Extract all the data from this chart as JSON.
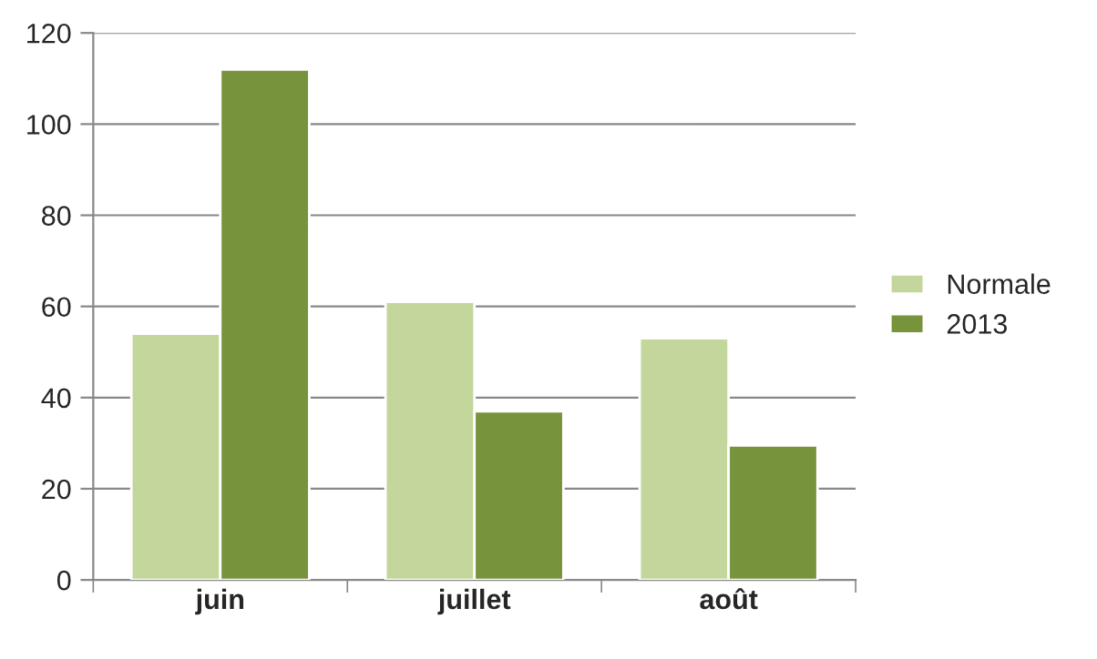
{
  "chart_data": {
    "type": "bar",
    "categories": [
      "juin",
      "juillet",
      "août"
    ],
    "series": [
      {
        "name": "Normale",
        "color": "#c3d69b",
        "values": [
          54,
          61,
          53
        ]
      },
      {
        "name": "2013",
        "color": "#77933c",
        "values": [
          112,
          37,
          29.5
        ]
      }
    ],
    "ylim": [
      0,
      120
    ],
    "yticks": [
      0,
      20,
      40,
      60,
      80,
      100,
      120
    ],
    "grid": "y",
    "legend": "right"
  }
}
